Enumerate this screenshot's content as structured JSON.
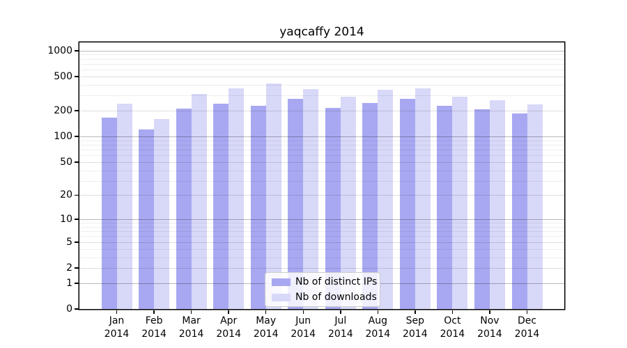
{
  "chart_data": {
    "type": "bar",
    "title": "yaqcaffy 2014",
    "categories": [
      "Jan",
      "Feb",
      "Mar",
      "Apr",
      "May",
      "Jun",
      "Jul",
      "Aug",
      "Sep",
      "Oct",
      "Nov",
      "Dec"
    ],
    "category_year": "2014",
    "series": [
      {
        "name": "Nb of distinct IPs",
        "color": "#a8a8f2",
        "values": [
          165,
          121,
          212,
          241,
          230,
          277,
          216,
          245,
          277,
          230,
          207,
          185
        ]
      },
      {
        "name": "Nb of downloads",
        "color": "#d8d8f8",
        "values": [
          242,
          160,
          316,
          363,
          418,
          355,
          290,
          354,
          367,
          290,
          267,
          236
        ]
      }
    ],
    "yscale": "log10(1+y)",
    "yticks": [
      0,
      1,
      2,
      5,
      10,
      20,
      50,
      100,
      200,
      500,
      1000
    ],
    "ylim": [
      0,
      1250
    ],
    "xlabel": "",
    "ylabel": "",
    "grid": "horizontal",
    "legend_position": "lower center"
  }
}
